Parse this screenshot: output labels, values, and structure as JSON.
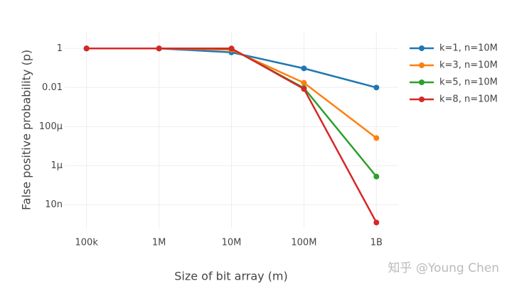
{
  "chart_data": {
    "type": "line",
    "x_label": "Size of bit array (m)",
    "y_label": "False positive probability (p)",
    "x": [
      100000,
      1000000,
      10000000,
      100000000,
      1000000000
    ],
    "series": [
      {
        "name": "k=1, n=10M",
        "color": "#1f77b4",
        "values": [
          1,
          0.99995,
          0.632,
          0.0952,
          0.00995
        ]
      },
      {
        "name": "k=3, n=10M",
        "color": "#ff7f0e",
        "values": [
          1,
          1,
          0.858,
          0.0174,
          2.58e-05
        ]
      },
      {
        "name": "k=5, n=10M",
        "color": "#2ca02c",
        "values": [
          1,
          1,
          0.967,
          0.00943,
          2.75e-07
        ]
      },
      {
        "name": "k=8, n=10M",
        "color": "#d62728",
        "values": [
          1,
          1,
          0.997,
          0.00848,
          1.22e-09
        ]
      }
    ],
    "xlim": [
      50000,
      2000000000
    ],
    "ylim": [
      6e-10,
      7
    ],
    "xticks": [
      {
        "value": 100000,
        "label": "100k"
      },
      {
        "value": 1000000,
        "label": "1M"
      },
      {
        "value": 10000000,
        "label": "10M"
      },
      {
        "value": 100000000,
        "label": "100M"
      },
      {
        "value": 1000000000,
        "label": "1B"
      }
    ],
    "yticks": [
      1,
      0.01,
      {
        "value": 0.0001,
        "label": "100μ"
      },
      {
        "value": 1e-06,
        "label": "1μ"
      },
      {
        "value": 1e-08,
        "label": "10n"
      }
    ],
    "log_x": true,
    "log_y": true,
    "grid": true,
    "legend": "right",
    "watermark": "知乎 @Young Chen"
  }
}
